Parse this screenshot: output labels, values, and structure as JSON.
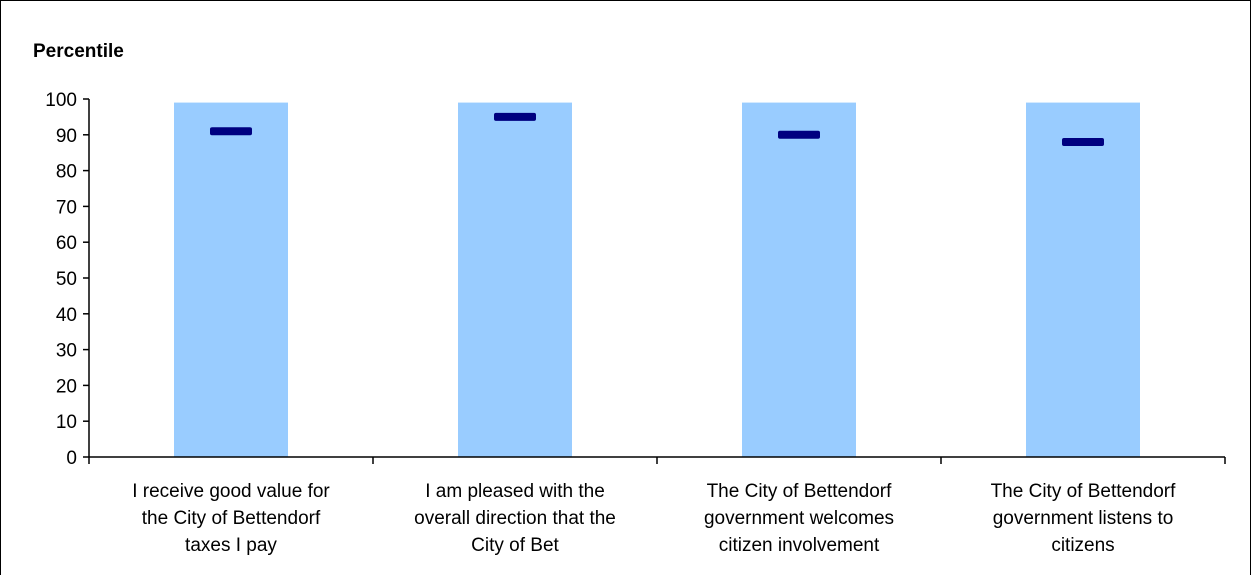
{
  "chart_data": {
    "type": "bar",
    "ylabel": "Percentile",
    "ylim": [
      0,
      100
    ],
    "yticks": [
      0,
      10,
      20,
      30,
      40,
      50,
      60,
      70,
      80,
      90,
      100
    ],
    "categories": [
      [
        "I receive good value for",
        "the City of Bettendorf",
        "taxes I pay"
      ],
      [
        "I am pleased with the",
        "overall direction that the",
        "City of Bet"
      ],
      [
        "The City of Bettendorf",
        "government welcomes",
        "citizen involvement"
      ],
      [
        "The City of Bettendorf",
        "government listens to",
        "citizens"
      ]
    ],
    "series": [
      {
        "type": "range-bar",
        "values": [
          99,
          99,
          99,
          99
        ]
      },
      {
        "type": "marker",
        "values": [
          91,
          95,
          90,
          88
        ]
      }
    ],
    "colors": {
      "bar": "#99ccff",
      "marker": "#000080",
      "axis": "#000000"
    },
    "grid": false,
    "legend": "none"
  }
}
